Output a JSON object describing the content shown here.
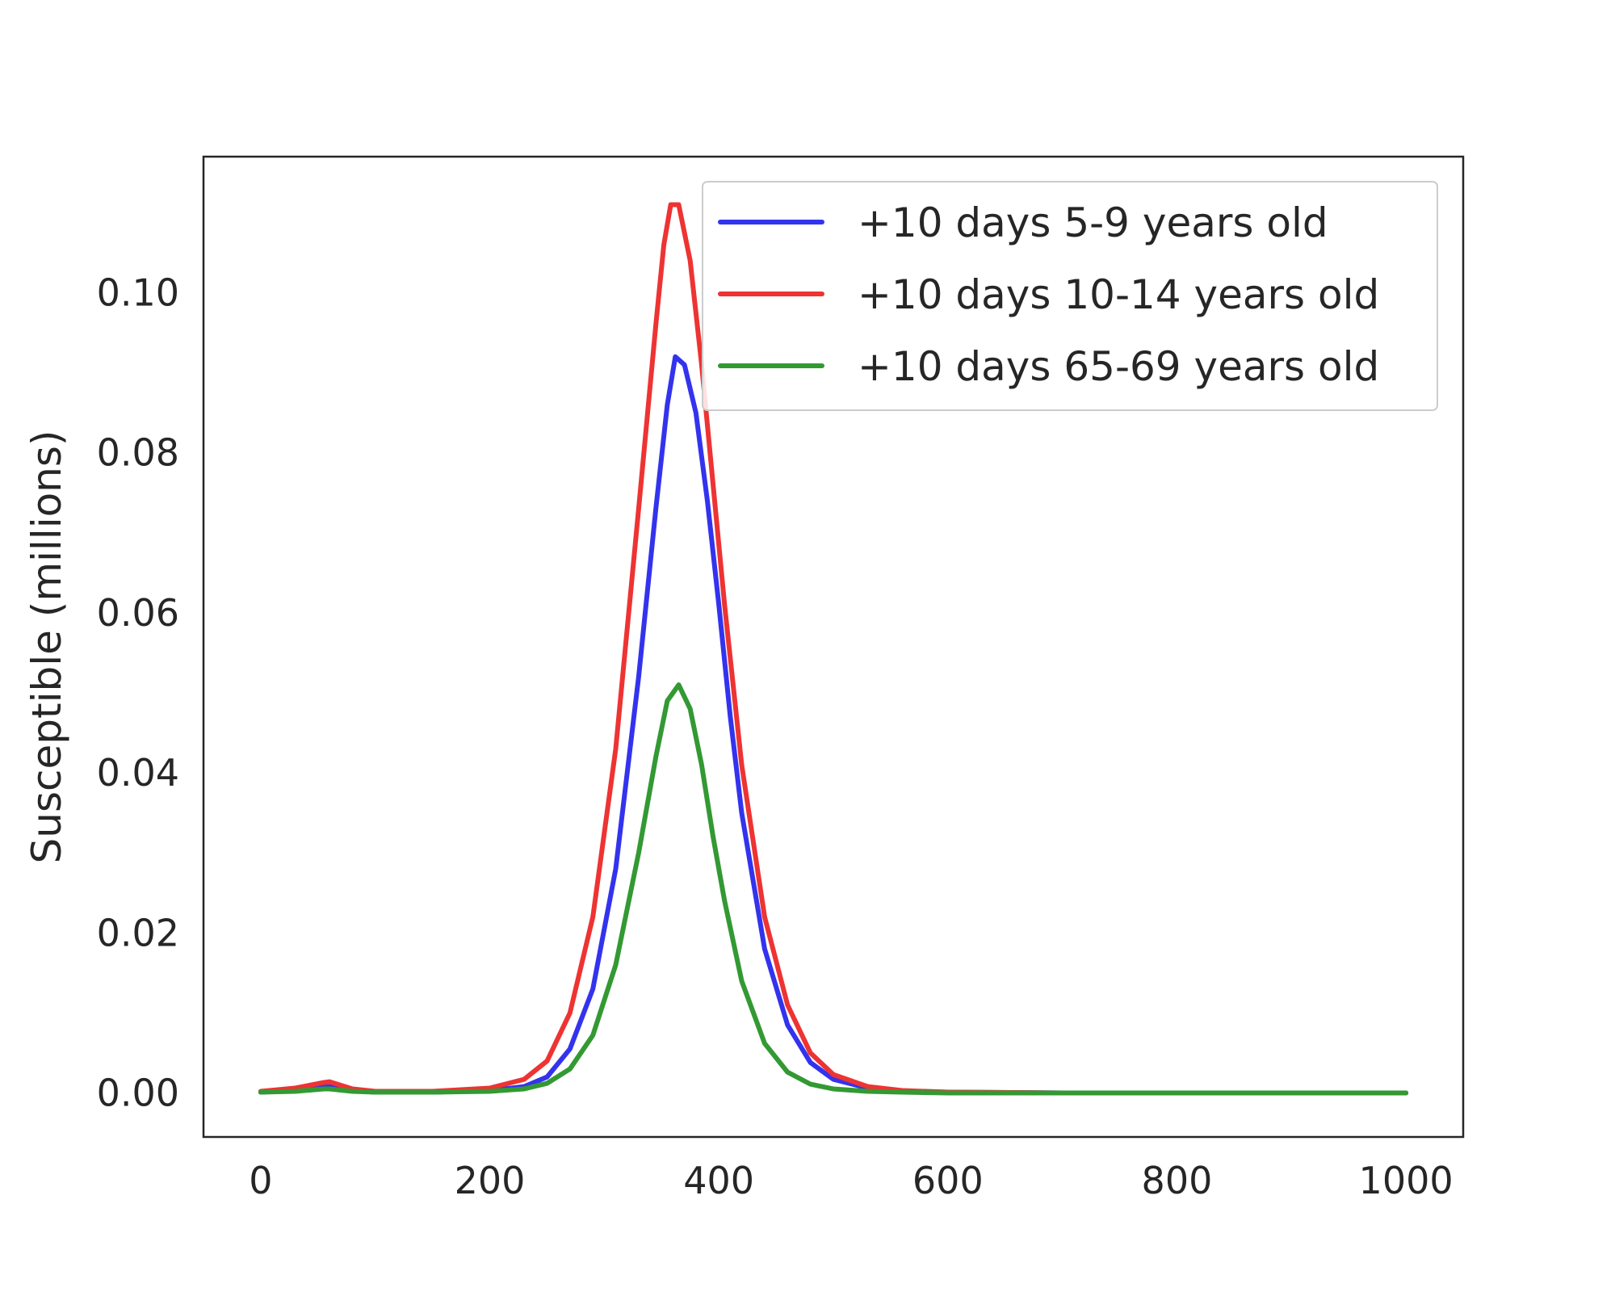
{
  "chart_data": {
    "type": "line",
    "title": "",
    "xlabel": "",
    "ylabel": "Susceptible (millions)",
    "xlim": [
      -50,
      1050
    ],
    "ylim": [
      -0.0055,
      0.117
    ],
    "xticks": [
      0,
      200,
      400,
      600,
      800,
      1000
    ],
    "yticks": [
      0.0,
      0.02,
      0.04,
      0.06,
      0.08,
      0.1
    ],
    "grid": false,
    "legend_position": "top-right",
    "series": [
      {
        "name": "+10 days 5-9 years old",
        "color": "#3333ee",
        "x": [
          0,
          30,
          55,
          60,
          80,
          100,
          150,
          200,
          230,
          250,
          270,
          290,
          310,
          330,
          345,
          355,
          362,
          370,
          380,
          390,
          400,
          410,
          420,
          440,
          460,
          480,
          500,
          530,
          560,
          600,
          700,
          800,
          1000
        ],
        "y": [
          0.0001,
          0.0003,
          0.0008,
          0.0008,
          0.0003,
          0.0001,
          0.0001,
          0.0003,
          0.0008,
          0.002,
          0.0055,
          0.013,
          0.028,
          0.052,
          0.073,
          0.086,
          0.092,
          0.091,
          0.085,
          0.074,
          0.061,
          0.047,
          0.035,
          0.018,
          0.0085,
          0.0038,
          0.0017,
          0.0006,
          0.0002,
          0.0001,
          0.0,
          0.0,
          0.0
        ]
      },
      {
        "name": "+10 days 10-14 years old",
        "color": "#ee3333",
        "x": [
          0,
          30,
          55,
          60,
          80,
          100,
          150,
          200,
          230,
          250,
          270,
          290,
          310,
          330,
          345,
          352,
          358,
          365,
          375,
          385,
          395,
          405,
          420,
          440,
          460,
          480,
          500,
          530,
          560,
          600,
          700,
          800,
          1000
        ],
        "y": [
          0.0002,
          0.0006,
          0.0013,
          0.0014,
          0.0005,
          0.0002,
          0.0002,
          0.0006,
          0.0017,
          0.004,
          0.01,
          0.022,
          0.043,
          0.073,
          0.096,
          0.106,
          0.111,
          0.111,
          0.104,
          0.091,
          0.076,
          0.061,
          0.041,
          0.022,
          0.011,
          0.005,
          0.0023,
          0.0008,
          0.0003,
          0.0001,
          0.0,
          0.0,
          0.0
        ]
      },
      {
        "name": "+10 days 65-69 years old",
        "color": "#339933",
        "x": [
          0,
          30,
          55,
          60,
          80,
          100,
          150,
          200,
          230,
          250,
          270,
          290,
          310,
          330,
          345,
          355,
          365,
          375,
          385,
          395,
          405,
          420,
          440,
          460,
          480,
          500,
          530,
          560,
          600,
          700,
          800,
          1000
        ],
        "y": [
          0.0001,
          0.0002,
          0.0005,
          0.0005,
          0.0002,
          0.0001,
          0.0001,
          0.0002,
          0.0005,
          0.0012,
          0.003,
          0.0072,
          0.016,
          0.03,
          0.042,
          0.049,
          0.051,
          0.048,
          0.041,
          0.032,
          0.024,
          0.014,
          0.0062,
          0.0026,
          0.0011,
          0.0005,
          0.0002,
          0.0001,
          0.0,
          0.0,
          0.0,
          0.0
        ]
      }
    ]
  }
}
